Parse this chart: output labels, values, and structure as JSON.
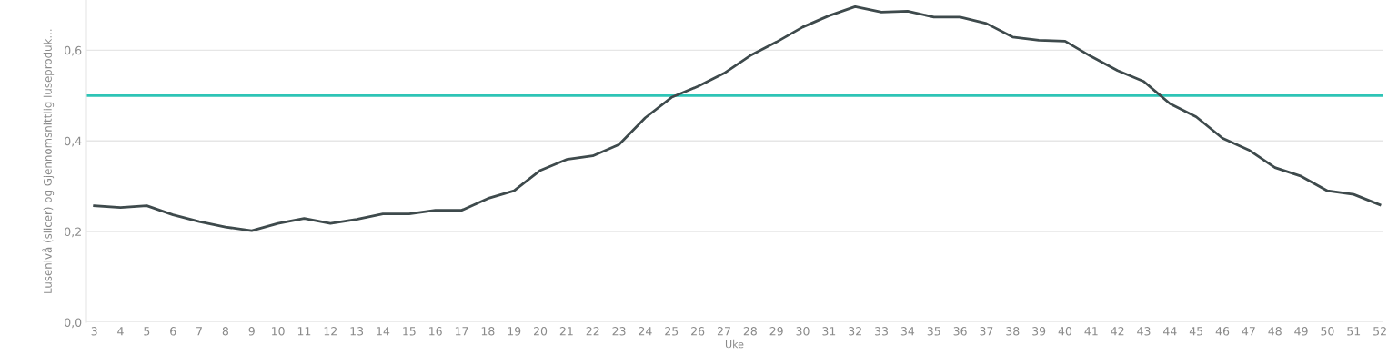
{
  "chart_data": {
    "type": "line",
    "xlabel": "Uke",
    "ylabel": "Lusenivå (slicer) og Gjennomsnittlig luseproduk...",
    "categories": [
      "3",
      "4",
      "5",
      "6",
      "7",
      "8",
      "9",
      "10",
      "11",
      "12",
      "13",
      "14",
      "15",
      "16",
      "17",
      "18",
      "19",
      "20",
      "21",
      "22",
      "23",
      "24",
      "25",
      "26",
      "27",
      "28",
      "29",
      "30",
      "31",
      "32",
      "33",
      "34",
      "35",
      "36",
      "37",
      "38",
      "39",
      "40",
      "41",
      "42",
      "43",
      "44",
      "45",
      "46",
      "47",
      "48",
      "49",
      "50",
      "51",
      "52"
    ],
    "series": [
      {
        "color": "#3e4a4c",
        "values": [
          0.257,
          0.253,
          0.257,
          0.237,
          0.222,
          0.21,
          0.202,
          0.218,
          0.229,
          0.218,
          0.227,
          0.239,
          0.239,
          0.247,
          0.247,
          0.273,
          0.29,
          0.335,
          0.359,
          0.367,
          0.392,
          0.451,
          0.496,
          0.52,
          0.549,
          0.588,
          0.618,
          0.651,
          0.676,
          0.696,
          0.684,
          0.686,
          0.673,
          0.673,
          0.659,
          0.629,
          0.622,
          0.62,
          0.586,
          0.555,
          0.531,
          0.482,
          0.453,
          0.406,
          0.38,
          0.341,
          0.322,
          0.29,
          0.282,
          0.259
        ]
      }
    ],
    "yticks": [
      {
        "value": 0,
        "label": "0,0"
      },
      {
        "value": 0.2,
        "label": "0,2"
      },
      {
        "value": 0.4,
        "label": "0,4"
      },
      {
        "value": 0.6,
        "label": "0,6"
      }
    ],
    "ylim": [
      0,
      0.71
    ],
    "ref_lines": [
      {
        "axis": "y",
        "value": 0.5,
        "color": "#2ec4b6"
      }
    ],
    "grid": "y",
    "marker": "none",
    "line_style": "solid"
  }
}
